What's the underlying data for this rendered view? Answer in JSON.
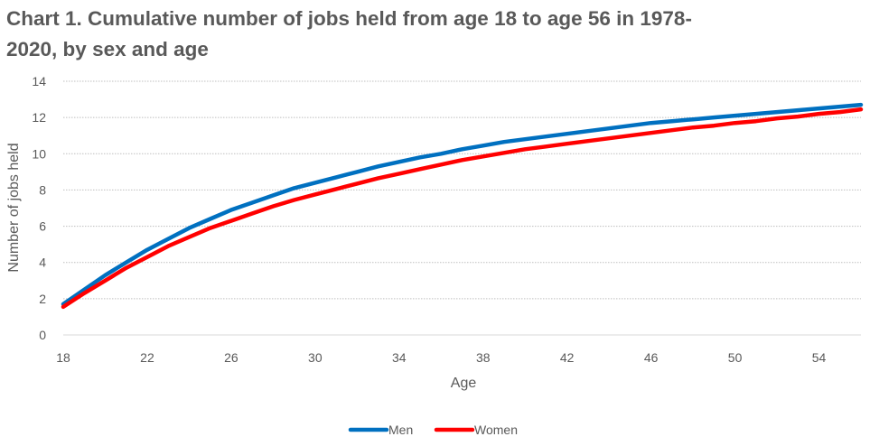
{
  "chart_data": {
    "type": "line",
    "title": "Chart 1. Cumulative number of jobs held from age 18 to age 56 in 1978-2020, by sex and age",
    "xlabel": "Age",
    "ylabel": "Number of jobs held",
    "xlim": [
      18,
      56
    ],
    "ylim": [
      0,
      14
    ],
    "xticks": [
      18,
      22,
      26,
      30,
      34,
      38,
      42,
      46,
      50,
      54
    ],
    "yticks": [
      0,
      2,
      4,
      6,
      8,
      10,
      12,
      14
    ],
    "grid": "horizontal",
    "legend": "bottom",
    "x": [
      18,
      19,
      20,
      21,
      22,
      23,
      24,
      25,
      26,
      27,
      28,
      29,
      30,
      31,
      32,
      33,
      34,
      35,
      36,
      37,
      38,
      39,
      40,
      41,
      42,
      43,
      44,
      45,
      46,
      47,
      48,
      49,
      50,
      51,
      52,
      53,
      54,
      55,
      56
    ],
    "series": [
      {
        "name": "Men",
        "color": "#0070C0",
        "values": [
          1.7,
          2.5,
          3.3,
          4.0,
          4.7,
          5.3,
          5.9,
          6.4,
          6.9,
          7.3,
          7.7,
          8.1,
          8.4,
          8.7,
          9.0,
          9.3,
          9.55,
          9.8,
          10.0,
          10.25,
          10.45,
          10.65,
          10.8,
          10.95,
          11.1,
          11.25,
          11.4,
          11.55,
          11.7,
          11.8,
          11.9,
          12.0,
          12.1,
          12.2,
          12.3,
          12.4,
          12.5,
          12.6,
          12.7
        ]
      },
      {
        "name": "Women",
        "color": "#FF0000",
        "values": [
          1.55,
          2.3,
          3.0,
          3.7,
          4.3,
          4.9,
          5.4,
          5.9,
          6.3,
          6.7,
          7.1,
          7.45,
          7.75,
          8.05,
          8.35,
          8.65,
          8.9,
          9.15,
          9.4,
          9.65,
          9.85,
          10.05,
          10.25,
          10.4,
          10.55,
          10.7,
          10.85,
          11.0,
          11.15,
          11.3,
          11.45,
          11.55,
          11.7,
          11.8,
          11.95,
          12.05,
          12.2,
          12.3,
          12.45
        ]
      }
    ]
  }
}
